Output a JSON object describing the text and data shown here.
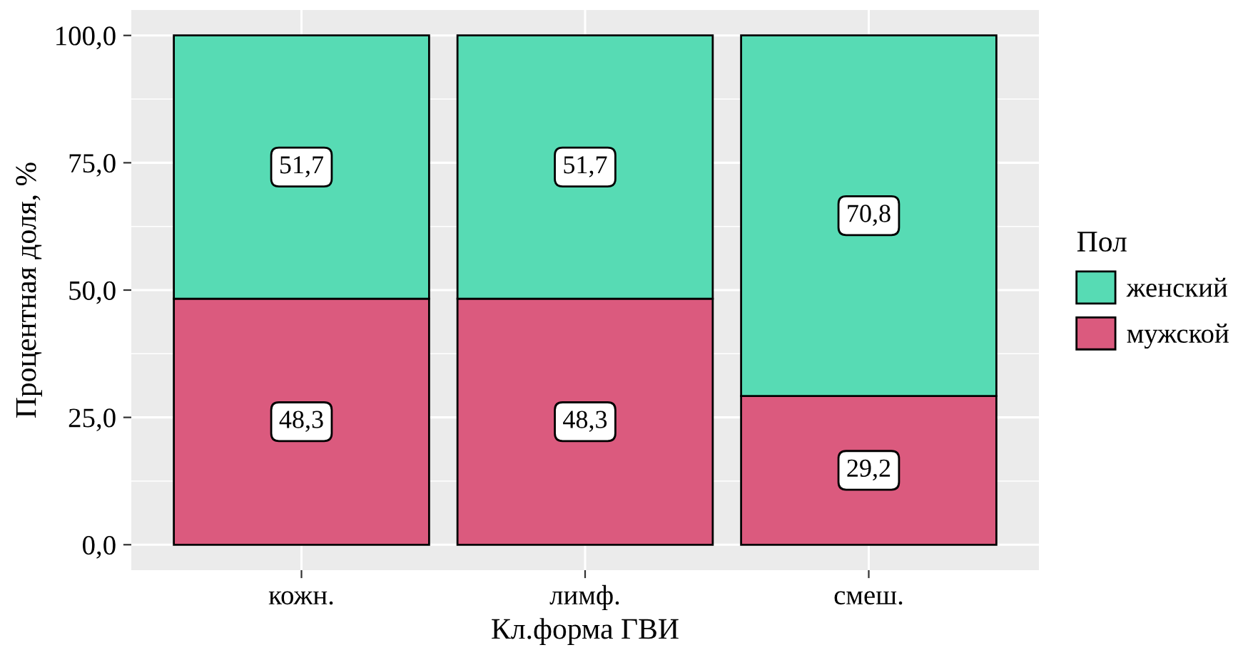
{
  "chart_data": {
    "type": "bar",
    "stacked": true,
    "xlabel": "Кл.форма ГВИ",
    "ylabel": "Процентная доля, %",
    "legend_title": "Пол",
    "legend": "right",
    "grid": true,
    "categories": [
      "кожн.",
      "лимф.",
      "смеш."
    ],
    "series": [
      {
        "name": "мужской",
        "color": "#db5a7e",
        "values": [
          48.3,
          48.3,
          29.2
        ],
        "value_labels": [
          "48,3",
          "48,3",
          "29,2"
        ]
      },
      {
        "name": "женский",
        "color": "#57dbb4",
        "values": [
          51.7,
          51.7,
          70.8
        ],
        "value_labels": [
          "51,7",
          "51,7",
          "70,8"
        ]
      }
    ],
    "ylim": [
      -5,
      105
    ],
    "yticks": [
      {
        "value": 0,
        "label": "0,0"
      },
      {
        "value": 25,
        "label": "25,0"
      },
      {
        "value": 50,
        "label": "50,0"
      },
      {
        "value": 75,
        "label": "75,0"
      },
      {
        "value": 100,
        "label": "100,0"
      }
    ]
  }
}
